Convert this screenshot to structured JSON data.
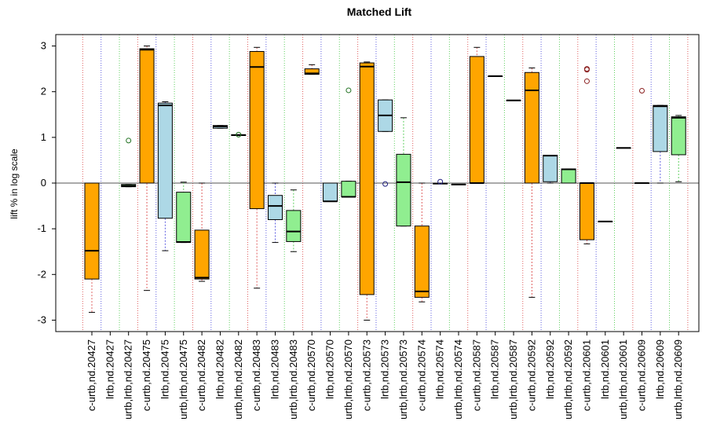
{
  "chart_data": {
    "type": "box",
    "title": "Matched Lift",
    "xlabel": "",
    "ylabel": "lift % in log scale",
    "ylim": [
      -3.25,
      3.25
    ],
    "yticks": [
      3,
      2,
      1,
      0,
      -1,
      -2,
      -3
    ],
    "reference_line_y": 0,
    "colors": {
      "c-urtb": "#FFA500",
      "lrtb": "#ADD8E6",
      "urtb,lrtb": "#90EE90",
      "sep_c-urtb": "#E06060",
      "sep_lrtb": "#6060E0",
      "sep_urtb,lrtb": "#60D060"
    },
    "categories": [
      "c-urtb,nd.20427",
      "lrtb,nd.20427",
      "urtb,lrtb,nd.20427",
      "c-urtb,nd.20475",
      "lrtb,nd.20475",
      "urtb,lrtb,nd.20475",
      "c-urtb,nd.20482",
      "lrtb,nd.20482",
      "urtb,lrtb,nd.20482",
      "c-urtb,nd.20483",
      "lrtb,nd.20483",
      "urtb,lrtb,nd.20483",
      "c-urtb,nd.20570",
      "lrtb,nd.20570",
      "urtb,lrtb,nd.20570",
      "c-urtb,nd.20573",
      "lrtb,nd.20573",
      "urtb,lrtb,nd.20573",
      "c-urtb,nd.20574",
      "lrtb,nd.20574",
      "urtb,lrtb,nd.20574",
      "c-urtb,nd.20587",
      "lrtb,nd.20587",
      "urtb,lrtb,nd.20587",
      "c-urtb,nd.20592",
      "lrtb,nd.20592",
      "urtb,lrtb,nd.20592",
      "c-urtb,nd.20601",
      "lrtb,nd.20601",
      "urtb,lrtb,nd.20601",
      "c-urtb,nd.20609",
      "lrtb,nd.20609",
      "urtb,lrtb,nd.20609"
    ],
    "boxes": [
      {
        "group": "c-urtb",
        "whisker_low": -2.83,
        "q1": -2.1,
        "median": -1.48,
        "q3": 0.0,
        "whisker_high": 0.0,
        "outliers": []
      },
      null,
      {
        "group": "urtb,lrtb",
        "whisker_low": -0.08,
        "q1": -0.08,
        "median": -0.06,
        "q3": -0.03,
        "whisker_high": -0.03,
        "outliers": [
          0.93
        ]
      },
      {
        "group": "c-urtb",
        "whisker_low": -2.35,
        "q1": 0.0,
        "median": 2.92,
        "q3": 2.94,
        "whisker_high": 3.0,
        "outliers": []
      },
      {
        "group": "lrtb",
        "whisker_low": -1.48,
        "q1": -0.77,
        "median": 1.7,
        "q3": 1.75,
        "whisker_high": 1.78,
        "outliers": []
      },
      {
        "group": "urtb,lrtb",
        "whisker_low": -1.3,
        "q1": -1.3,
        "median": -1.29,
        "q3": -0.2,
        "whisker_high": 0.02,
        "outliers": []
      },
      {
        "group": "c-urtb",
        "whisker_low": -2.15,
        "q1": -2.1,
        "median": -2.07,
        "q3": -1.03,
        "whisker_high": 0.0,
        "outliers": []
      },
      {
        "group": "lrtb",
        "whisker_low": 1.2,
        "q1": 1.2,
        "median": 1.24,
        "q3": 1.26,
        "whisker_high": 1.26,
        "outliers": []
      },
      {
        "group": "urtb,lrtb",
        "whisker_low": 1.04,
        "q1": 1.04,
        "median": 1.05,
        "q3": 1.06,
        "whisker_high": 1.06,
        "outliers": [
          1.06
        ]
      },
      {
        "group": "c-urtb",
        "whisker_low": -2.3,
        "q1": -0.56,
        "median": 2.54,
        "q3": 2.88,
        "whisker_high": 2.97,
        "outliers": []
      },
      {
        "group": "lrtb",
        "whisker_low": -1.3,
        "q1": -0.8,
        "median": -0.5,
        "q3": -0.27,
        "whisker_high": 0.0,
        "outliers": []
      },
      {
        "group": "urtb,lrtb",
        "whisker_low": -1.5,
        "q1": -1.28,
        "median": -1.06,
        "q3": -0.6,
        "whisker_high": -0.15,
        "outliers": []
      },
      {
        "group": "c-urtb",
        "whisker_low": 2.38,
        "q1": 2.38,
        "median": 2.4,
        "q3": 2.5,
        "whisker_high": 2.59,
        "outliers": []
      },
      {
        "group": "lrtb",
        "whisker_low": -0.4,
        "q1": -0.4,
        "median": -0.4,
        "q3": 0.0,
        "whisker_high": 0.0,
        "outliers": []
      },
      {
        "group": "urtb,lrtb",
        "whisker_low": -0.3,
        "q1": -0.3,
        "median": -0.3,
        "q3": 0.04,
        "whisker_high": 0.04,
        "outliers": [
          2.03
        ]
      },
      {
        "group": "c-urtb",
        "whisker_low": -3.0,
        "q1": -2.44,
        "median": 2.55,
        "q3": 2.63,
        "whisker_high": 2.65,
        "outliers": []
      },
      {
        "group": "lrtb",
        "whisker_low": 1.13,
        "q1": 1.13,
        "median": 1.48,
        "q3": 1.82,
        "whisker_high": 1.82,
        "outliers": [
          -0.02
        ]
      },
      {
        "group": "urtb,lrtb",
        "whisker_low": -0.94,
        "q1": -0.94,
        "median": 0.02,
        "q3": 0.63,
        "whisker_high": 1.43,
        "outliers": []
      },
      {
        "group": "c-urtb",
        "whisker_low": -2.6,
        "q1": -2.5,
        "median": -2.37,
        "q3": -0.94,
        "whisker_high": 0.0,
        "outliers": []
      },
      {
        "group": "lrtb",
        "whisker_low": -0.01,
        "q1": -0.01,
        "median": -0.01,
        "q3": -0.01,
        "whisker_high": -0.01,
        "outliers": [
          0.03
        ]
      },
      {
        "group": "urtb,lrtb",
        "whisker_low": -0.03,
        "q1": -0.03,
        "median": -0.03,
        "q3": -0.03,
        "whisker_high": -0.03,
        "outliers": []
      },
      {
        "group": "c-urtb",
        "whisker_low": 0.0,
        "q1": 0.0,
        "median": 0.0,
        "q3": 2.77,
        "whisker_high": 2.97,
        "outliers": []
      },
      {
        "group": "lrtb",
        "whisker_low": 2.34,
        "q1": 2.34,
        "median": 2.34,
        "q3": 2.34,
        "whisker_high": 2.34,
        "outliers": []
      },
      {
        "group": "urtb,lrtb",
        "whisker_low": 1.81,
        "q1": 1.81,
        "median": 1.81,
        "q3": 1.81,
        "whisker_high": 1.81,
        "outliers": []
      },
      {
        "group": "c-urtb",
        "whisker_low": -2.5,
        "q1": 0.0,
        "median": 2.03,
        "q3": 2.42,
        "whisker_high": 2.52,
        "outliers": []
      },
      {
        "group": "lrtb",
        "whisker_low": 0.0,
        "q1": 0.03,
        "median": 0.6,
        "q3": 0.61,
        "whisker_high": 0.61,
        "outliers": []
      },
      {
        "group": "urtb,lrtb",
        "whisker_low": 0.0,
        "q1": 0.0,
        "median": 0.3,
        "q3": 0.31,
        "whisker_high": 0.31,
        "outliers": []
      },
      {
        "group": "c-urtb",
        "whisker_low": -1.33,
        "q1": -1.24,
        "median": 0.0,
        "q3": 0.0,
        "whisker_high": 0.0,
        "outliers": [
          2.23,
          2.48,
          2.5
        ]
      },
      {
        "group": "lrtb",
        "whisker_low": -0.84,
        "q1": -0.84,
        "median": -0.84,
        "q3": -0.84,
        "whisker_high": -0.84,
        "outliers": []
      },
      {
        "group": "urtb,lrtb",
        "whisker_low": 0.77,
        "q1": 0.77,
        "median": 0.77,
        "q3": 0.77,
        "whisker_high": 0.77,
        "outliers": []
      },
      {
        "group": "c-urtb",
        "whisker_low": 0.0,
        "q1": 0.0,
        "median": 0.0,
        "q3": 0.0,
        "whisker_high": 0.0,
        "outliers": [
          2.02
        ]
      },
      {
        "group": "lrtb",
        "whisker_low": 0.0,
        "q1": 0.69,
        "median": 1.68,
        "q3": 1.7,
        "whisker_high": 1.7,
        "outliers": []
      },
      {
        "group": "urtb,lrtb",
        "whisker_low": 0.03,
        "q1": 0.62,
        "median": 1.43,
        "q3": 1.45,
        "whisker_high": 1.48,
        "outliers": []
      }
    ]
  }
}
